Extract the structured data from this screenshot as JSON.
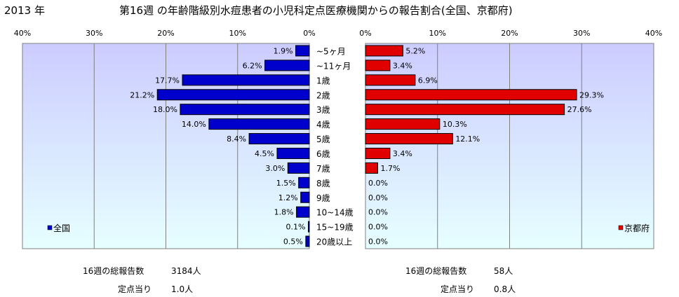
{
  "header": {
    "year": "2013 年",
    "title": "第16週 の年齢階級別水痘患者の小児科定点医療機関からの報告割合(全国、京都府)"
  },
  "chart_data": {
    "type": "bar",
    "orientation": "horizontal",
    "categories": [
      "~5ヶ月",
      "~11ヶ月",
      "1歳",
      "2歳",
      "3歳",
      "4歳",
      "5歳",
      "6歳",
      "7歳",
      "8歳",
      "9歳",
      "10~14歳",
      "15~19歳",
      "20歳以上"
    ],
    "series": [
      {
        "name": "全国",
        "color": "#0000cc",
        "values": [
          1.9,
          6.2,
          17.7,
          21.2,
          18.0,
          14.0,
          8.4,
          4.5,
          3.0,
          1.5,
          1.2,
          1.8,
          0.1,
          0.5
        ],
        "labels": [
          "1.9%",
          "6.2%",
          "17.7%",
          "21.2%",
          "18.0%",
          "14.0%",
          "8.4%",
          "4.5%",
          "3.0%",
          "1.5%",
          "1.2%",
          "1.8%",
          "0.1%",
          "0.5%"
        ]
      },
      {
        "name": "京都府",
        "color": "#e00000",
        "values": [
          5.2,
          3.4,
          6.9,
          29.3,
          27.6,
          10.3,
          12.1,
          3.4,
          1.7,
          0.0,
          0.0,
          0.0,
          0.0,
          0.0
        ],
        "labels": [
          "5.2%",
          "3.4%",
          "6.9%",
          "29.3%",
          "27.6%",
          "10.3%",
          "12.1%",
          "3.4%",
          "1.7%",
          "0.0%",
          "0.0%",
          "0.0%",
          "0.0%",
          "0.0%"
        ]
      }
    ],
    "xlim": [
      0,
      40
    ],
    "ticks": [
      "40%",
      "30%",
      "20%",
      "10%",
      "0%"
    ],
    "ticks_right": [
      "0%",
      "10%",
      "20%",
      "30%",
      "40%"
    ],
    "grid": true,
    "plot_colors": {
      "top": "#ccccff",
      "bottom": "#e6ffff"
    }
  },
  "stats": {
    "national": {
      "total_label": "16週の総報告数",
      "total_value": "3184人",
      "per_label": "定点当り",
      "per_value": "1.0人"
    },
    "kyoto": {
      "total_label": "16週の総報告数",
      "total_value": "58人",
      "per_label": "定点当り",
      "per_value": "0.8人"
    }
  }
}
